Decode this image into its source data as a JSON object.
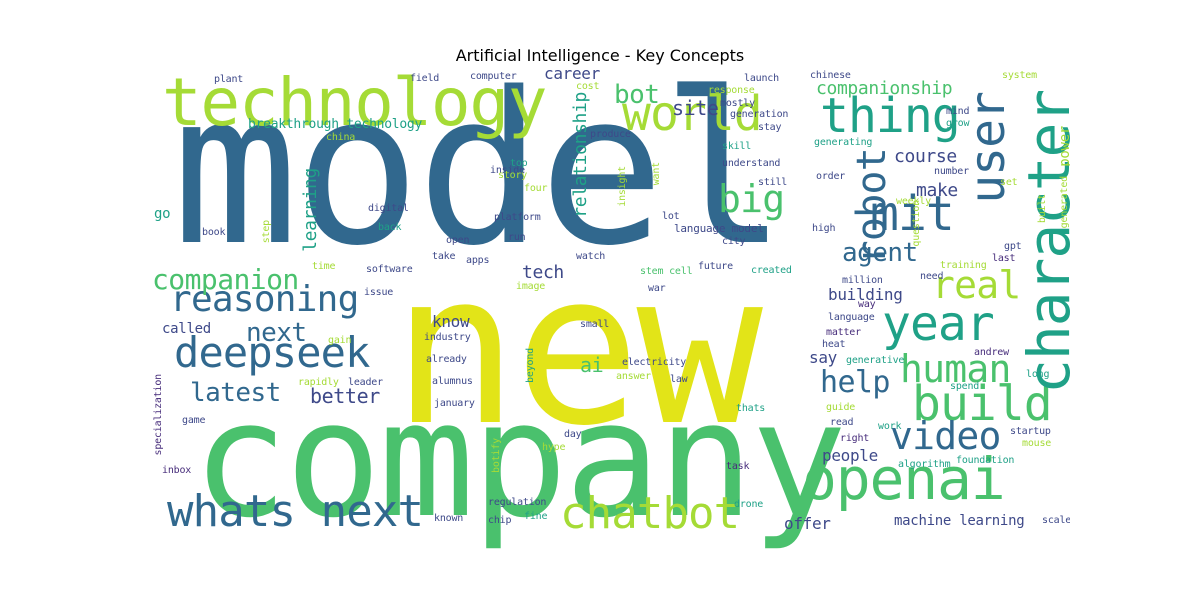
{
  "title": "Artificial Intelligence - Key Concepts",
  "colors": {
    "yellow": "#e2e418",
    "lime": "#a5db36",
    "green": "#4ac16d",
    "teal": "#1fa187",
    "steel": "#2a788e",
    "blue": "#31688e",
    "indigo": "#3e4989",
    "purple": "#472d7b"
  },
  "words": [
    "model",
    "new",
    "company",
    "technology",
    "openai",
    "whats next",
    "chatbot",
    "deepseek",
    "reasoning",
    "build",
    "year",
    "character",
    "user",
    "world",
    "thing",
    "mit",
    "video",
    "human",
    "big",
    "real",
    "companion",
    "robot",
    "help",
    "latest",
    "agent",
    "bot",
    "next",
    "better",
    "site",
    "course",
    "career",
    "relationship",
    "tech",
    "learning",
    "make",
    "say",
    "know",
    "ai",
    "offer",
    "people",
    "building",
    "machine learning",
    "companionship",
    "breakthrough technology",
    "called",
    "power",
    "go",
    "language model",
    "stem cell",
    "future",
    "created",
    "training",
    "gpt",
    "last",
    "million",
    "way",
    "language",
    "matter",
    "heat",
    "generative",
    "andrew",
    "long",
    "spend",
    "guide",
    "read",
    "right",
    "work",
    "startup",
    "mouse",
    "algorithm",
    "foundation",
    "thats",
    "task",
    "drone",
    "day",
    "hype",
    "botify",
    "regulation",
    "chip",
    "fine",
    "known",
    "scale",
    "law",
    "electricity",
    "answer",
    "war",
    "small",
    "industry",
    "already",
    "alumnus",
    "january",
    "leader",
    "rapidly",
    "gain",
    "beyond",
    "image",
    "issue",
    "software",
    "time",
    "apps",
    "take",
    "watch",
    "city",
    "open",
    "run",
    "platform",
    "back",
    "digital",
    "step",
    "book",
    "inside",
    "insight",
    "four",
    "top",
    "story",
    "want",
    "lot",
    "high",
    "built",
    "generated",
    "weekly",
    "question",
    "set",
    "order",
    "still",
    "understand",
    "skill",
    "generating",
    "number",
    "mind",
    "grow",
    "stay",
    "generation",
    "mostly",
    "response",
    "produce",
    "cost",
    "launch",
    "chinese",
    "system",
    "computer",
    "field",
    "plant",
    "china",
    "game",
    "inbox",
    "specialization",
    "need"
  ]
}
